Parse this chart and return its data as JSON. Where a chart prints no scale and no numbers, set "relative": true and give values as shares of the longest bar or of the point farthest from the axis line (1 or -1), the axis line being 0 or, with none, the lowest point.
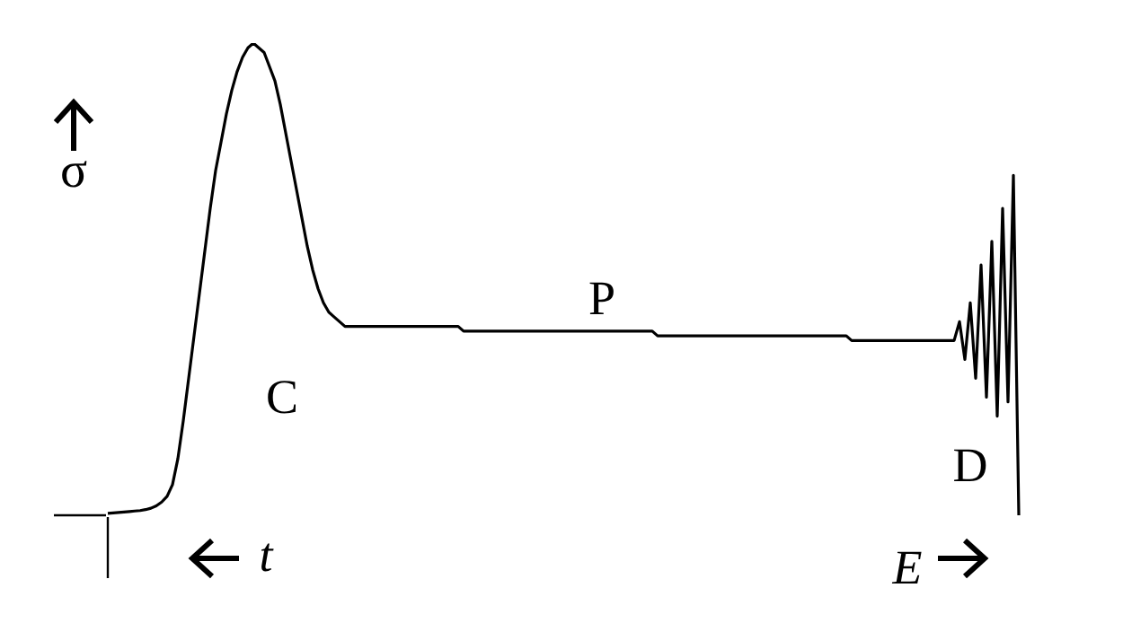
{
  "chart_data": {
    "type": "line",
    "relative": true,
    "xlabel": "E",
    "ylabel": "σ",
    "marker": "none",
    "line_style": "solid",
    "annotations": [
      "C",
      "P",
      "D",
      "t"
    ],
    "categories": [
      null,
      null,
      null,
      null,
      null,
      null,
      null,
      null,
      null,
      null,
      null,
      null,
      null,
      null,
      null,
      null,
      null,
      null,
      null,
      null,
      null,
      null,
      null,
      null,
      null,
      null,
      null,
      null,
      null,
      null,
      null,
      null,
      null,
      null,
      null,
      null,
      null,
      null,
      null,
      null,
      null,
      null,
      null,
      null,
      null,
      null,
      null,
      null,
      null,
      null,
      null,
      null,
      null,
      null,
      null,
      null,
      null,
      null,
      null,
      null,
      null,
      null,
      null,
      null,
      null,
      null,
      null,
      null,
      null,
      null,
      null,
      null,
      null,
      null,
      null,
      null,
      null,
      null,
      null,
      null,
      null,
      null,
      null,
      null,
      null,
      null,
      null,
      null,
      null,
      null,
      null,
      null,
      null,
      null,
      null,
      null,
      null,
      null,
      null,
      null,
      null,
      null,
      null,
      null,
      null,
      null,
      null,
      null,
      null,
      null,
      null,
      null,
      null,
      null,
      null,
      null,
      null,
      null,
      null,
      null,
      null,
      null,
      null,
      null,
      null,
      null,
      null,
      null,
      null,
      null,
      null,
      null,
      null,
      null,
      null,
      null,
      null,
      null,
      null,
      null,
      null,
      null,
      null,
      null,
      null,
      null,
      null,
      null,
      null,
      null,
      null,
      null,
      null,
      null,
      null,
      null,
      null,
      null,
      null,
      null,
      null,
      null,
      null,
      null,
      null,
      null,
      null,
      null,
      null,
      null,
      null,
      null,
      null,
      null,
      null,
      null,
      null,
      null,
      null,
      null,
      null,
      null
    ],
    "series": [
      {
        "color": "#000000",
        "values": [
          0.004,
          0.005,
          0.006,
          0.007,
          0.008,
          0.009,
          0.01,
          0.012,
          0.015,
          0.02,
          0.028,
          0.04,
          0.065,
          0.12,
          0.2,
          0.29,
          0.38,
          0.47,
          0.56,
          0.65,
          0.73,
          0.79,
          0.85,
          0.9,
          0.94,
          0.97,
          0.99,
          1.0,
          0.99,
          0.98,
          0.95,
          0.92,
          0.87,
          0.81,
          0.75,
          0.69,
          0.63,
          0.57,
          0.52,
          0.48,
          0.45,
          0.43,
          0.42,
          0.41,
          0.4,
          0.4,
          0.4,
          0.4,
          0.4,
          0.4,
          0.4,
          0.4,
          0.4,
          0.4,
          0.4,
          0.4,
          0.4,
          0.4,
          0.4,
          0.4,
          0.4,
          0.4,
          0.4,
          0.4,
          0.4,
          0.4,
          0.39,
          0.39,
          0.39,
          0.39,
          0.39,
          0.39,
          0.39,
          0.39,
          0.39,
          0.39,
          0.39,
          0.39,
          0.39,
          0.39,
          0.39,
          0.39,
          0.39,
          0.39,
          0.39,
          0.39,
          0.39,
          0.39,
          0.39,
          0.39,
          0.39,
          0.39,
          0.39,
          0.39,
          0.39,
          0.39,
          0.39,
          0.39,
          0.39,
          0.39,
          0.39,
          0.39,
          0.38,
          0.38,
          0.38,
          0.38,
          0.38,
          0.38,
          0.38,
          0.38,
          0.38,
          0.38,
          0.38,
          0.38,
          0.38,
          0.38,
          0.38,
          0.38,
          0.38,
          0.38,
          0.38,
          0.38,
          0.38,
          0.38,
          0.38,
          0.38,
          0.38,
          0.38,
          0.38,
          0.38,
          0.38,
          0.38,
          0.38,
          0.38,
          0.38,
          0.38,
          0.38,
          0.38,
          0.37,
          0.37,
          0.37,
          0.37,
          0.37,
          0.37,
          0.37,
          0.37,
          0.37,
          0.37,
          0.37,
          0.37,
          0.37,
          0.37,
          0.37,
          0.37,
          0.37,
          0.37,
          0.37,
          0.37,
          0.41,
          0.33,
          0.45,
          0.29,
          0.53,
          0.25,
          0.58,
          0.21,
          0.65,
          0.24,
          0.72,
          0,
          null,
          null,
          null,
          null,
          null,
          null,
          null,
          null,
          null,
          null,
          null,
          null
        ]
      }
    ]
  }
}
